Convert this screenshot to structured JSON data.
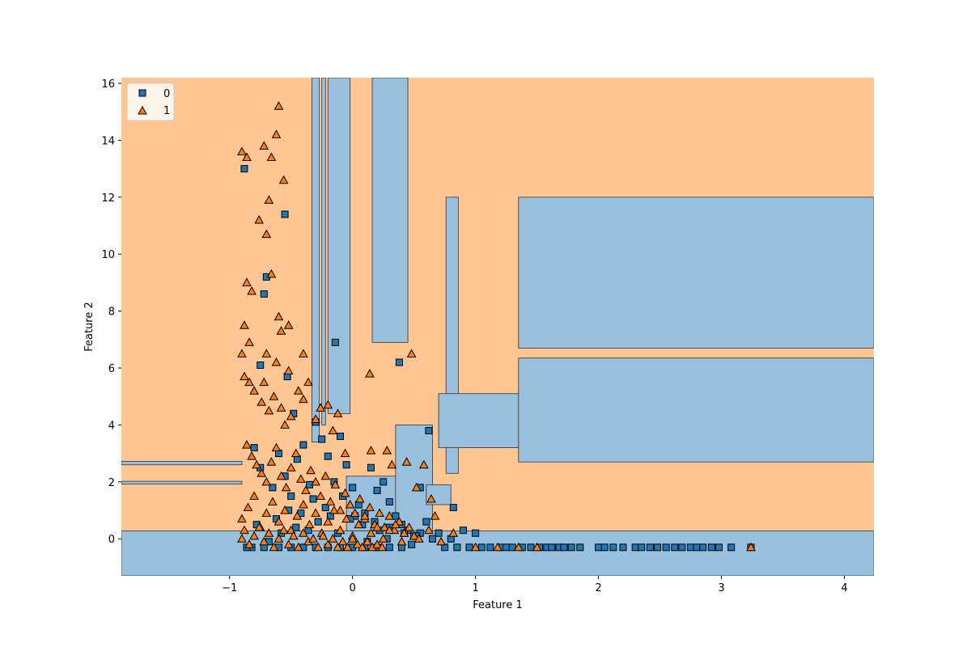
{
  "chart_data": {
    "type": "scatter",
    "title": "",
    "xlabel": "Feature 1",
    "ylabel": "Feature 2",
    "xlim": [
      -1.88,
      4.24
    ],
    "ylim": [
      -1.3,
      16.2
    ],
    "x_ticks": [
      -1,
      0,
      1,
      2,
      3,
      4
    ],
    "x_tick_labels": [
      "−1",
      "0",
      "1",
      "2",
      "3",
      "4"
    ],
    "y_ticks": [
      0,
      2,
      4,
      6,
      8,
      10,
      12,
      14,
      16
    ],
    "y_tick_labels": [
      "0",
      "2",
      "4",
      "6",
      "8",
      "10",
      "12",
      "14",
      "16"
    ],
    "grid": false,
    "legend": {
      "placement": "top-left",
      "entries": [
        {
          "label": "0",
          "marker": "square",
          "color": "#1f77b4"
        },
        {
          "label": "1",
          "marker": "triangle",
          "color": "#ff7f0e"
        }
      ]
    },
    "region_colors": {
      "0": "#99c0dd",
      "1": "#ffc593"
    },
    "decision_regions_class0": [
      [
        -1.88,
        -1.3,
        4.24,
        0.28
      ],
      [
        -1.88,
        1.92,
        -0.9,
        2.02
      ],
      [
        -1.88,
        2.6,
        -0.9,
        2.72
      ],
      [
        -0.2,
        4.4,
        -0.02,
        16.2
      ],
      [
        0.16,
        6.9,
        0.45,
        16.2
      ],
      [
        0.76,
        2.3,
        0.86,
        12.0
      ],
      [
        0.7,
        3.2,
        1.35,
        5.1
      ],
      [
        1.35,
        2.7,
        4.24,
        6.35
      ],
      [
        1.35,
        6.7,
        4.24,
        12.0
      ],
      [
        -0.05,
        0.28,
        0.55,
        2.2
      ],
      [
        0.35,
        0.28,
        0.65,
        4.0
      ],
      [
        0.6,
        1.2,
        0.8,
        1.9
      ],
      [
        -0.33,
        3.4,
        -0.27,
        16.2
      ],
      [
        -0.25,
        4.0,
        -0.22,
        16.2
      ]
    ],
    "series": [
      {
        "name": "0",
        "marker": "square",
        "color": "#1f77b4",
        "x": [
          -0.88,
          -0.75,
          -0.72,
          -0.7,
          -0.55,
          -0.53,
          -0.48,
          -0.14,
          0.38,
          0.62,
          -0.8,
          -0.75,
          -0.65,
          -0.6,
          -0.55,
          -0.5,
          -0.45,
          -0.4,
          -0.35,
          -0.3,
          -0.25,
          -0.2,
          -0.15,
          -0.1,
          -0.05,
          0.0,
          0.05,
          0.1,
          0.15,
          0.2,
          0.25,
          0.3,
          0.35,
          0.4,
          0.45,
          0.5,
          0.55,
          0.6,
          0.7,
          0.8,
          0.9,
          1.0,
          0.02,
          0.18,
          0.3,
          0.55,
          0.82,
          -0.82,
          -0.78,
          -0.68,
          -0.62,
          -0.58,
          -0.52,
          -0.46,
          -0.42,
          -0.36,
          -0.32,
          -0.28,
          -0.22,
          -0.18,
          -0.12,
          -0.08,
          -0.02,
          0.08,
          0.12,
          0.22,
          0.28,
          0.42,
          0.48,
          0.52,
          0.65,
          0.75,
          0.85,
          0.95,
          1.05,
          1.12,
          1.2,
          1.25,
          1.3,
          1.38,
          1.45,
          1.52,
          1.58,
          1.62,
          1.68,
          1.72,
          1.78,
          1.85,
          2.0,
          2.05,
          2.12,
          2.2,
          2.3,
          2.35,
          2.42,
          2.48,
          2.55,
          2.62,
          2.68,
          2.75,
          2.8,
          2.85,
          2.92,
          2.98,
          3.08,
          3.24,
          -0.86,
          -0.72,
          -0.6,
          -0.5,
          -0.4,
          -0.3,
          -0.2,
          -0.1,
          0.0,
          0.1,
          0.2,
          0.3,
          0.4
        ],
        "y": [
          13.0,
          6.1,
          8.6,
          9.2,
          11.4,
          5.7,
          4.4,
          6.9,
          6.2,
          3.8,
          3.2,
          2.5,
          1.8,
          3.0,
          2.2,
          1.5,
          2.8,
          3.3,
          1.9,
          4.1,
          3.5,
          2.9,
          2.0,
          3.6,
          2.6,
          1.8,
          1.2,
          0.9,
          2.5,
          1.7,
          2.0,
          1.3,
          0.8,
          0.5,
          0.3,
          0.1,
          1.8,
          0.6,
          0.2,
          0.0,
          0.3,
          0.2,
          0.8,
          0.6,
          0.4,
          0.2,
          1.1,
          -0.3,
          0.5,
          -0.1,
          0.7,
          0.2,
          1.0,
          0.4,
          0.9,
          0.3,
          1.4,
          0.6,
          1.1,
          0.8,
          0.2,
          1.5,
          0.7,
          0.5,
          -0.1,
          0.3,
          0.0,
          0.2,
          -0.2,
          0.1,
          0.0,
          -0.3,
          -0.3,
          -0.3,
          -0.3,
          -0.3,
          -0.3,
          -0.3,
          -0.3,
          -0.3,
          -0.3,
          -0.3,
          -0.3,
          -0.3,
          -0.3,
          -0.3,
          -0.3,
          -0.3,
          -0.3,
          -0.3,
          -0.3,
          -0.3,
          -0.3,
          -0.3,
          -0.3,
          -0.3,
          -0.3,
          -0.3,
          -0.3,
          -0.3,
          -0.3,
          -0.3,
          -0.3,
          -0.3,
          -0.3,
          -0.3,
          -0.3,
          -0.3,
          -0.3,
          -0.3,
          -0.3,
          -0.3,
          -0.3,
          -0.3,
          -0.3,
          -0.3,
          -0.3,
          -0.3,
          -0.3
        ]
      },
      {
        "name": "1",
        "marker": "triangle",
        "color": "#ff7f0e",
        "x": [
          -0.9,
          -0.86,
          -0.72,
          -0.66,
          -0.62,
          -0.6,
          -0.56,
          -0.68,
          -0.66,
          -0.76,
          -0.86,
          -0.82,
          -0.6,
          -0.58,
          -0.52,
          -0.88,
          -0.84,
          -0.7,
          -0.62,
          -0.4,
          -0.52,
          -0.72,
          -0.7,
          -0.9,
          -0.88,
          -0.84,
          -0.8,
          -0.74,
          -0.68,
          -0.64,
          -0.58,
          -0.55,
          -0.5,
          -0.44,
          -0.4,
          -0.36,
          -0.3,
          -0.26,
          -0.2,
          -0.16,
          -0.12,
          -0.06,
          0.14,
          0.28,
          0.48,
          0.15,
          0.32,
          0.44,
          0.52,
          0.58,
          0.64,
          0.67,
          -0.86,
          -0.82,
          -0.78,
          -0.74,
          -0.7,
          -0.66,
          -0.62,
          -0.58,
          -0.54,
          -0.5,
          -0.46,
          -0.42,
          -0.38,
          -0.34,
          -0.3,
          -0.26,
          -0.22,
          -0.18,
          -0.14,
          -0.1,
          -0.06,
          -0.02,
          0.02,
          0.06,
          0.1,
          0.14,
          0.18,
          0.22,
          0.26,
          0.3,
          0.34,
          0.38,
          0.42,
          0.46,
          0.5,
          0.54,
          0.62,
          0.72,
          0.82,
          1.0,
          1.18,
          1.35,
          1.5,
          -0.9,
          -0.85,
          -0.8,
          -0.75,
          -0.7,
          -0.65,
          -0.6,
          -0.55,
          -0.5,
          -0.45,
          -0.4,
          -0.35,
          -0.3,
          -0.25,
          -0.2,
          -0.15,
          -0.1,
          -0.05,
          0.0,
          0.05,
          0.1,
          0.15,
          0.2,
          0.25,
          0.3,
          0.35,
          0.4,
          -0.9,
          -0.88,
          -0.84,
          -0.8,
          -0.76,
          -0.72,
          -0.68,
          -0.64,
          -0.6,
          -0.56,
          -0.52,
          -0.48,
          -0.44,
          -0.4,
          -0.36,
          -0.32,
          -0.28,
          -0.24,
          -0.2,
          -0.16,
          -0.12,
          -0.08,
          -0.04,
          0.0,
          0.04,
          0.08,
          0.12,
          0.16,
          0.2,
          0.24,
          3.24
        ],
        "y": [
          13.6,
          13.4,
          13.8,
          13.4,
          14.2,
          15.2,
          12.6,
          11.9,
          9.3,
          11.2,
          9.0,
          8.7,
          7.8,
          7.3,
          7.5,
          7.5,
          6.9,
          6.5,
          6.2,
          6.5,
          5.9,
          5.5,
          10.7,
          6.5,
          5.7,
          5.5,
          5.2,
          4.8,
          4.5,
          5.0,
          4.6,
          4.0,
          4.3,
          5.2,
          4.9,
          5.5,
          4.2,
          4.6,
          4.7,
          3.8,
          4.4,
          3.0,
          5.8,
          3.1,
          6.5,
          3.1,
          2.6,
          2.7,
          1.8,
          2.6,
          1.4,
          0.8,
          3.3,
          2.9,
          2.6,
          2.3,
          2.0,
          2.7,
          3.2,
          2.2,
          1.8,
          2.5,
          3.0,
          2.1,
          1.7,
          2.4,
          2.0,
          1.5,
          2.2,
          1.3,
          1.9,
          1.0,
          1.6,
          1.2,
          0.9,
          1.4,
          0.7,
          1.1,
          0.5,
          0.9,
          0.4,
          0.8,
          0.3,
          0.6,
          0.2,
          0.4,
          0.1,
          0.0,
          0.3,
          -0.1,
          0.2,
          -0.3,
          -0.3,
          -0.3,
          -0.3,
          0.7,
          1.1,
          1.5,
          0.4,
          0.9,
          1.3,
          0.6,
          1.0,
          0.3,
          0.8,
          1.2,
          0.5,
          0.9,
          0.2,
          0.6,
          1.0,
          0.3,
          0.7,
          0.1,
          0.5,
          0.8,
          0.2,
          0.4,
          0.0,
          0.3,
          0.5,
          -0.1,
          0.0,
          0.3,
          -0.2,
          0.1,
          0.4,
          -0.1,
          0.2,
          -0.3,
          0.0,
          0.3,
          -0.2,
          0.1,
          -0.3,
          0.2,
          -0.1,
          0.0,
          -0.3,
          0.1,
          -0.2,
          0.0,
          -0.3,
          -0.1,
          -0.3,
          0.0,
          -0.2,
          -0.3,
          -0.1,
          -0.3,
          -0.2,
          -0.3,
          -0.3
        ]
      }
    ]
  }
}
